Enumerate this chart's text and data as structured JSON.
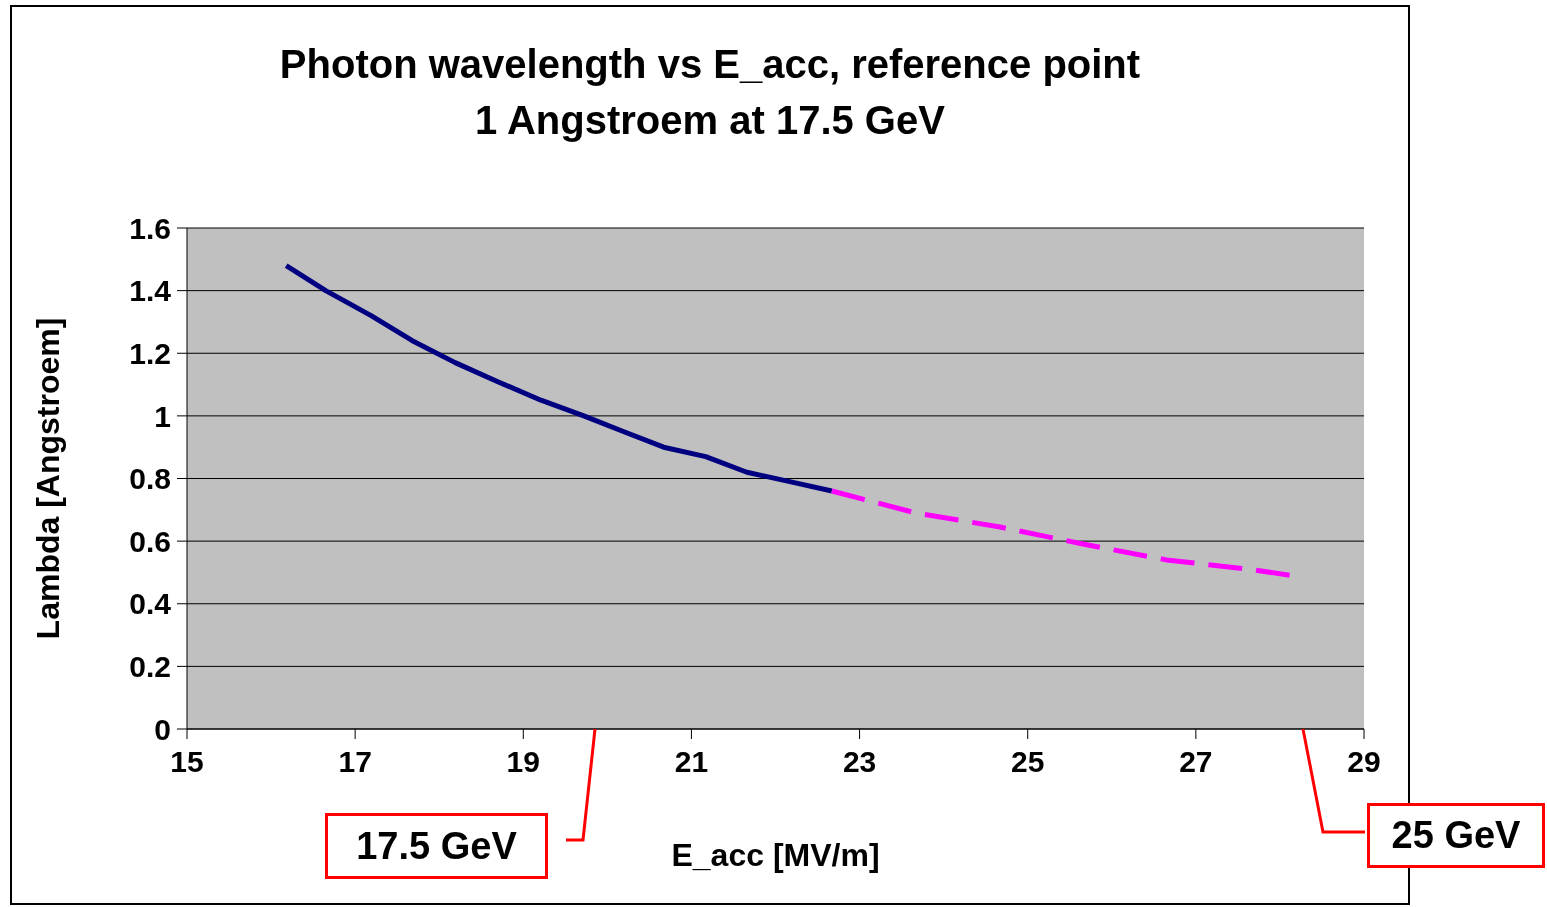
{
  "chart_data": {
    "type": "line",
    "title": "Photon wavelength vs E_acc, reference point\n1 Angstroem at 17.5 GeV",
    "xlabel": "E_acc [MV/m]",
    "ylabel": "Lambda [Angstroem]",
    "xlim": [
      15,
      29
    ],
    "xticks": [
      15,
      17,
      19,
      21,
      23,
      25,
      27,
      29
    ],
    "ylim": [
      0,
      1.6
    ],
    "yticks": [
      0,
      0.2,
      0.4,
      0.6,
      0.8,
      1,
      1.2,
      1.4,
      1.6
    ],
    "grid": "y",
    "marker": "none",
    "series": [
      {
        "color": "#000080",
        "line_style": "solid",
        "x": [
          16.18,
          16.65,
          17.19,
          17.68,
          18.19,
          18.69,
          19.21,
          19.72,
          20.19,
          20.67,
          21.17,
          21.66,
          22.17,
          22.67
        ],
        "values": [
          1.48,
          1.4,
          1.32,
          1.24,
          1.17,
          1.11,
          1.05,
          1.0,
          0.95,
          0.9,
          0.87,
          0.82,
          0.79,
          0.76
        ]
      },
      {
        "color": "#ff00ff",
        "line_style": "dashed",
        "x": [
          22.67,
          23.67,
          24.67,
          25.67,
          26.65,
          27.64,
          28.14
        ],
        "values": [
          0.76,
          0.69,
          0.645,
          0.59,
          0.54,
          0.51,
          0.49
        ]
      }
    ],
    "annotations": [
      "17.5 GeV",
      "25 GeV"
    ]
  }
}
